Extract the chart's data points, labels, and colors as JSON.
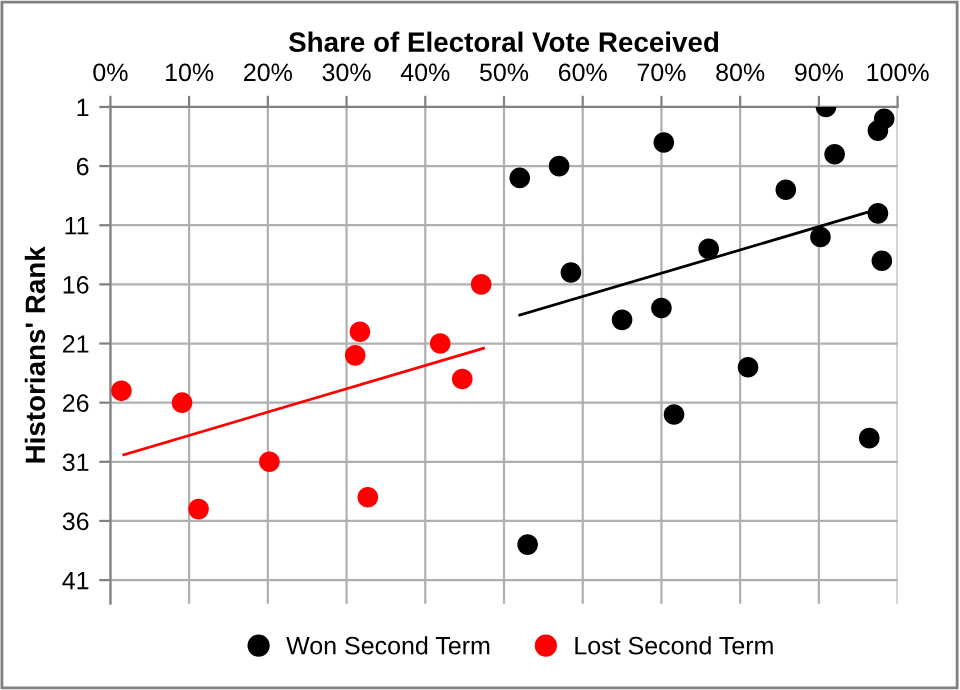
{
  "chart_data": {
    "type": "scatter",
    "xlabel": "Share of Electoral Vote Received",
    "ylabel": "Historians' Rank",
    "xlim": [
      0,
      100
    ],
    "xticks": [
      {
        "value": 0,
        "label": "0%"
      },
      {
        "value": 10,
        "label": "10%"
      },
      {
        "value": 20,
        "label": "20%"
      },
      {
        "value": 30,
        "label": "30%"
      },
      {
        "value": 40,
        "label": "40%"
      },
      {
        "value": 50,
        "label": "50%"
      },
      {
        "value": 60,
        "label": "60%"
      },
      {
        "value": 70,
        "label": "70%"
      },
      {
        "value": 80,
        "label": "80%"
      },
      {
        "value": 90,
        "label": "90%"
      },
      {
        "value": 100,
        "label": "100%"
      }
    ],
    "ylim": [
      43,
      1
    ],
    "yticks": [
      1,
      6,
      11,
      16,
      21,
      26,
      31,
      36,
      41
    ],
    "grid": true,
    "legend": "bottom",
    "marker": "circle",
    "series": [
      {
        "name": "Won Second Term",
        "color": "#000000",
        "x": [
          90.9,
          98.3,
          97.5,
          92.0,
          70.3,
          57.0,
          52.0,
          85.8,
          97.5,
          90.2,
          76.0,
          98.0,
          58.5,
          70.0,
          65.0,
          81.0,
          71.6,
          96.4,
          53.0
        ],
        "values": [
          1,
          2,
          3,
          5,
          4,
          6,
          7,
          8,
          10,
          12,
          13,
          14,
          15,
          18,
          19,
          23,
          27,
          29,
          38
        ]
      },
      {
        "name": "Lost Second Term",
        "color": "#ff0000",
        "x": [
          1.4,
          9.1,
          11.2,
          20.2,
          31.1,
          31.7,
          32.7,
          41.9,
          44.7,
          47.1
        ],
        "values": [
          25,
          26,
          35,
          31,
          22,
          20,
          34,
          21,
          24,
          16
        ]
      },
      {
        "type": "line",
        "color": "#000000",
        "x": [
          52.0,
          96.7
        ],
        "values": [
          18.6,
          9.8
        ],
        "marker": "none"
      },
      {
        "type": "line",
        "color": "#ff0000",
        "x": [
          1.7,
          47.4
        ],
        "values": [
          30.4,
          21.4
        ],
        "marker": "none"
      }
    ]
  }
}
